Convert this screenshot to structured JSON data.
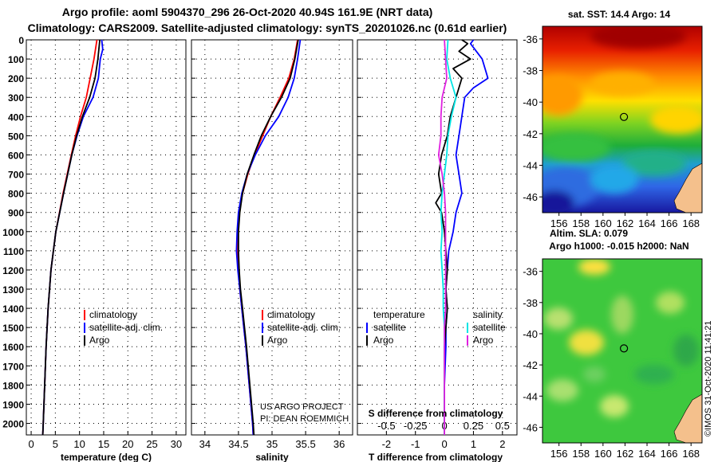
{
  "header": {
    "line1": "Argo profile: aoml 5904370_296 26-Oct-2020 40.94S 161.9E (NRT data)",
    "line2": "Climatology: CARS2009. Satellite-adjusted climatology: synTS_20201026.nc (0.61d earlier)"
  },
  "credits": {
    "project": "US ARGO PROJECT",
    "pi": "PI: DEAN ROEMMICH",
    "stamp": "©IMOS 31-Oct-2020 11:41:21"
  },
  "colors": {
    "argo": "#000000",
    "climatology": "#ff0000",
    "satellite": "#0000ff",
    "sat_salinity": "#00e5e5",
    "argo_salinity": "#e020e0"
  },
  "chart_data": [
    {
      "type": "line",
      "xlabel": "temperature (deg C)",
      "ylabel": "",
      "xlim": [
        -1,
        32
      ],
      "ylim": [
        2060,
        0
      ],
      "xticks": [
        0,
        5,
        10,
        15,
        20,
        25,
        30
      ],
      "yticks": [
        0,
        100,
        200,
        300,
        400,
        500,
        600,
        700,
        800,
        900,
        1000,
        1100,
        1200,
        1300,
        1400,
        1500,
        1600,
        1700,
        1800,
        1900,
        2000
      ],
      "grid": true,
      "legend": {
        "position": "lower-middle",
        "entries": [
          "climatology",
          "satellite-adj. clim.",
          "Argo"
        ]
      },
      "series": [
        {
          "name": "climatology",
          "color": "red",
          "depth": [
            0,
            100,
            200,
            300,
            400,
            500,
            600,
            800,
            1000,
            1200,
            1400,
            1600,
            1800,
            2000,
            2060
          ],
          "values": [
            13.6,
            13.0,
            12.2,
            11.4,
            10.2,
            9.2,
            8.3,
            6.6,
            5.1,
            4.1,
            3.5,
            3.1,
            2.8,
            2.5,
            2.4
          ]
        },
        {
          "name": "satellite-adj. clim.",
          "color": "blue",
          "depth": [
            0,
            50,
            100,
            200,
            300,
            400,
            500,
            600,
            800,
            1000,
            1200,
            1400,
            1600,
            1800,
            2000,
            2060
          ],
          "values": [
            14.6,
            14.8,
            14.3,
            13.9,
            12.8,
            10.8,
            9.5,
            8.4,
            6.7,
            5.1,
            4.1,
            3.5,
            3.1,
            2.8,
            2.5,
            2.4
          ]
        },
        {
          "name": "Argo",
          "color": "black",
          "depth": [
            0,
            100,
            200,
            300,
            400,
            500,
            600,
            800,
            1000,
            1200,
            1400,
            1600,
            1800,
            2000,
            2060
          ],
          "values": [
            14.2,
            13.8,
            13.2,
            12.1,
            10.6,
            9.4,
            8.4,
            6.7,
            5.1,
            4.1,
            3.5,
            3.1,
            2.8,
            2.5,
            2.4
          ]
        }
      ]
    },
    {
      "type": "line",
      "xlabel": "salinity",
      "xlim": [
        33.8,
        36.2
      ],
      "ylim": [
        2060,
        0
      ],
      "xticks": [
        34,
        34.5,
        35,
        35.5,
        36
      ],
      "grid": true,
      "legend": {
        "position": "lower-middle",
        "entries": [
          "climatology",
          "satellite-adj. clim.",
          "Argo"
        ]
      },
      "series": [
        {
          "name": "climatology",
          "color": "red",
          "depth": [
            0,
            100,
            200,
            300,
            400,
            500,
            600,
            700,
            800,
            900,
            1000,
            1100,
            1200,
            1300,
            1400,
            1500,
            1600,
            1800,
            2000,
            2060
          ],
          "values": [
            35.38,
            35.33,
            35.25,
            35.12,
            34.98,
            34.86,
            34.74,
            34.64,
            34.56,
            34.51,
            34.49,
            34.49,
            34.5,
            34.52,
            34.55,
            34.58,
            34.61,
            34.66,
            34.71,
            34.72
          ]
        },
        {
          "name": "satellite-adj. clim.",
          "color": "blue",
          "depth": [
            0,
            100,
            200,
            300,
            400,
            500,
            600,
            700,
            800,
            900,
            1000,
            1100,
            1200,
            1300,
            1400,
            1500,
            1600,
            1800,
            2000,
            2060
          ],
          "values": [
            35.42,
            35.38,
            35.33,
            35.24,
            35.1,
            34.9,
            34.75,
            34.63,
            34.55,
            34.5,
            34.48,
            34.47,
            34.49,
            34.52,
            34.55,
            34.58,
            34.61,
            34.66,
            34.71,
            34.72
          ]
        },
        {
          "name": "Argo",
          "color": "black",
          "depth": [
            0,
            100,
            200,
            300,
            400,
            500,
            600,
            700,
            800,
            900,
            1000,
            1100,
            1200,
            1300,
            1400,
            1500,
            1600,
            1800,
            2000,
            2060
          ],
          "values": [
            35.39,
            35.34,
            35.27,
            35.14,
            34.98,
            34.84,
            34.73,
            34.63,
            34.56,
            34.52,
            34.5,
            34.5,
            34.51,
            34.53,
            34.56,
            34.59,
            34.62,
            34.67,
            34.72,
            34.73
          ]
        }
      ]
    },
    {
      "type": "line",
      "xlabel": "T difference from climatology",
      "xlabel_top": "S difference from climatology",
      "xlim": [
        -3,
        2.5
      ],
      "ylim": [
        2060,
        0
      ],
      "xticks": [
        -2,
        -1,
        0,
        1,
        2
      ],
      "xticks_top": [
        "-0.5",
        "-0.25",
        "0",
        "0.25",
        "0.5"
      ],
      "grid": true,
      "legend_left": {
        "title": "temperature",
        "entries": [
          "satellite",
          "Argo"
        ]
      },
      "legend_right": {
        "title": "salinity",
        "entries": [
          "satellite",
          "Argo"
        ]
      },
      "series": [
        {
          "name": "temperature satellite",
          "color": "blue",
          "depth": [
            0,
            20,
            60,
            100,
            150,
            200,
            250,
            300,
            400,
            500,
            600,
            700,
            800,
            900,
            1000,
            1100,
            1200,
            1300,
            1400,
            1500,
            1600,
            1800,
            2000,
            2060
          ],
          "values": [
            1.0,
            0.9,
            1.1,
            1.3,
            1.4,
            1.5,
            1.0,
            0.7,
            0.6,
            0.5,
            0.4,
            0.5,
            0.6,
            0.4,
            0.3,
            0.15,
            0.1,
            0.05,
            0.1,
            0.05,
            0.05,
            0.0,
            0.0,
            0.0
          ]
        },
        {
          "name": "temperature Argo",
          "color": "black",
          "depth": [
            0,
            20,
            60,
            100,
            150,
            200,
            300,
            400,
            500,
            600,
            700,
            800,
            850,
            900,
            1000,
            1100,
            1200,
            1300,
            1400,
            1500,
            1600,
            1800,
            2000,
            2060
          ],
          "values": [
            0.6,
            0.8,
            0.5,
            0.9,
            0.3,
            0.6,
            0.4,
            0.2,
            0.1,
            -0.1,
            -0.2,
            -0.1,
            -0.3,
            -0.1,
            0.0,
            0.05,
            0.1,
            0.05,
            0.1,
            0.05,
            0.0,
            0.0,
            0.0,
            0.0
          ]
        },
        {
          "name": "salinity satellite",
          "color": "cyan",
          "depth": [
            0,
            100,
            200,
            300,
            400,
            500,
            600,
            700,
            800,
            900,
            1000,
            1100,
            1200,
            1300,
            1400,
            1500,
            1600,
            1800,
            2000,
            2060
          ],
          "values": [
            0.03,
            0.02,
            0.05,
            0.1,
            0.06,
            0.03,
            0.02,
            0.0,
            -0.02,
            -0.03,
            -0.02,
            -0.03,
            -0.02,
            -0.01,
            -0.01,
            0.0,
            0.0,
            0.0,
            0.0,
            0.0
          ]
        },
        {
          "name": "salinity Argo",
          "color": "magenta",
          "depth": [
            0,
            100,
            200,
            300,
            400,
            500,
            600,
            700,
            800,
            900,
            1000,
            1100,
            1200,
            1300,
            1400,
            1500,
            1600,
            1800,
            2000,
            2060
          ],
          "values": [
            0.0,
            0.01,
            0.02,
            -0.02,
            -0.03,
            -0.03,
            -0.05,
            -0.02,
            0.0,
            0.01,
            0.01,
            0.01,
            0.01,
            0.01,
            0.01,
            0.0,
            0.0,
            0.0,
            0.0,
            0.0
          ]
        }
      ]
    },
    {
      "type": "heatmap",
      "title": "sat. SST: 14.4 Argo: 14",
      "xticks": [
        156,
        158,
        160,
        162,
        164,
        166,
        168
      ],
      "yticks": [
        -36,
        -38,
        -40,
        -42,
        -44,
        -46
      ],
      "xlim": [
        154.5,
        169.0
      ],
      "ylim": [
        -47.0,
        -35.2
      ],
      "argo_position": {
        "lon": 161.9,
        "lat": -40.94
      }
    },
    {
      "type": "heatmap",
      "title": "Altim. SLA: 0.079",
      "subtitle": "Argo h1000: -0.015 h2000: NaN",
      "xticks": [
        156,
        158,
        160,
        162,
        164,
        166,
        168
      ],
      "yticks": [
        -36,
        -38,
        -40,
        -42,
        -44,
        -46
      ],
      "xlim": [
        154.5,
        169.0
      ],
      "ylim": [
        -47.0,
        -35.2
      ],
      "argo_position": {
        "lon": 161.9,
        "lat": -40.94
      }
    }
  ]
}
